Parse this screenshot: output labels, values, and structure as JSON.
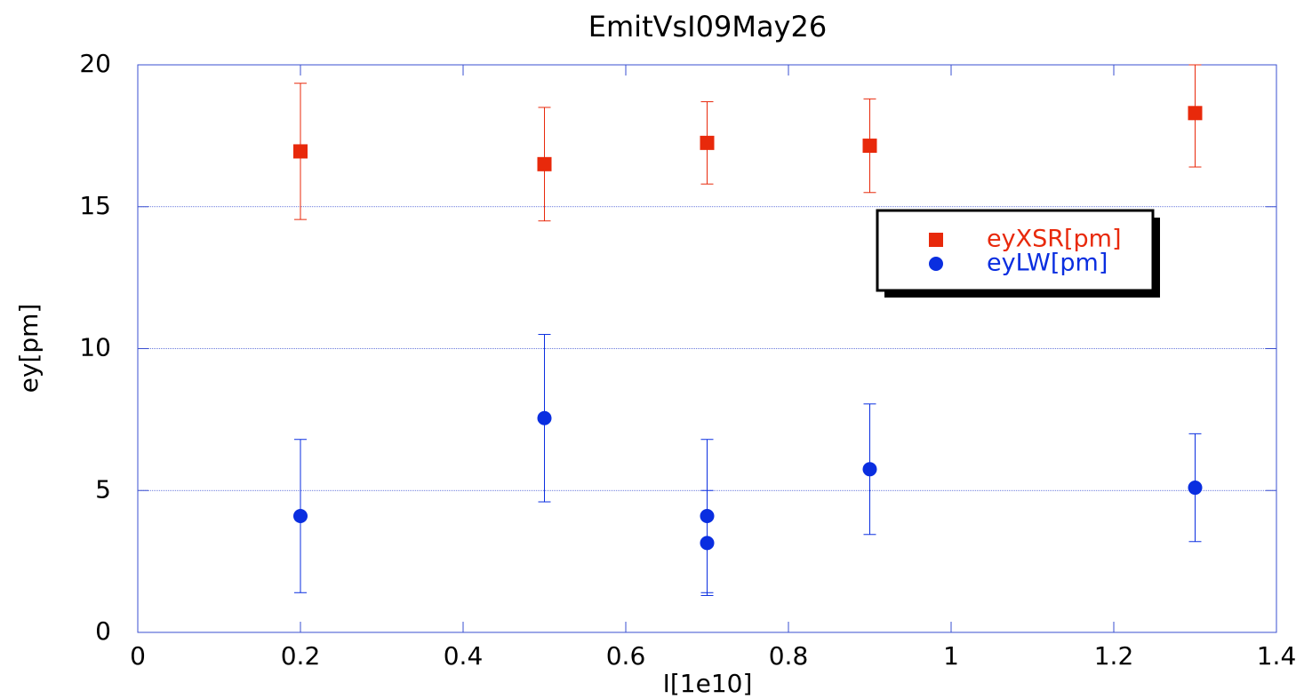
{
  "chart_data": {
    "type": "scatter",
    "title": "EmitVsI09May26",
    "x_label": "I[1e10]",
    "y_label": "ey[pm]",
    "xlim": [
      0,
      1.4
    ],
    "ylim": [
      0,
      20
    ],
    "xticks": [
      0,
      0.2,
      0.4,
      0.6,
      0.8,
      1,
      1.2,
      1.4
    ],
    "yticks": [
      0,
      5,
      10,
      15,
      20
    ],
    "grid": "y",
    "legend": "upper right",
    "series": [
      {
        "name": "eyXSR[pm]",
        "color": "#e8290b",
        "marker": "square",
        "x": [
          0.2,
          0.5,
          0.7,
          0.9,
          1.3
        ],
        "values": [
          16.95,
          16.5,
          17.25,
          17.15,
          18.3
        ],
        "errors": [
          2.4,
          2.0,
          1.45,
          1.65,
          1.9
        ]
      },
      {
        "name": "eyLW[pm]",
        "color": "#0a2ee0",
        "marker": "circle",
        "x": [
          0.2,
          0.5,
          0.7,
          0.7,
          0.9,
          1.3
        ],
        "values": [
          4.1,
          7.55,
          4.1,
          3.15,
          5.75,
          5.1
        ],
        "errors": [
          2.7,
          2.95,
          2.7,
          1.85,
          2.3,
          1.9
        ]
      }
    ]
  }
}
